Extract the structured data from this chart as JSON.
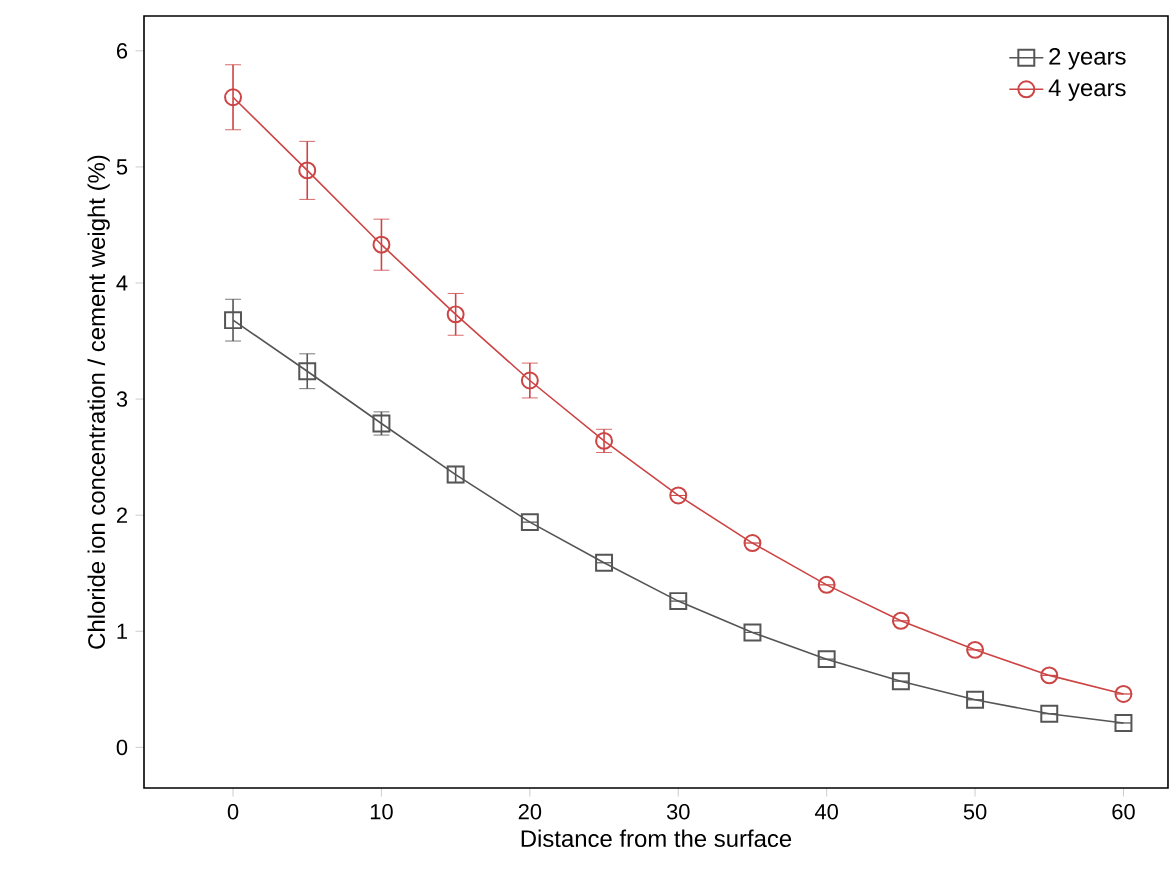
{
  "chart_data": {
    "type": "line",
    "xlabel": "Distance from the surface",
    "ylabel": "Chloride ion concentration / cement weight (%)",
    "x": [
      0,
      5,
      10,
      15,
      20,
      25,
      30,
      35,
      40,
      45,
      50,
      55,
      60
    ],
    "series": [
      {
        "name": "2 years",
        "color": "#555555",
        "marker": "square",
        "values": [
          3.68,
          3.24,
          2.79,
          2.35,
          1.94,
          1.59,
          1.26,
          0.99,
          0.76,
          0.57,
          0.41,
          0.29,
          0.21
        ],
        "errors": [
          0.18,
          0.15,
          0.1,
          0.07,
          null,
          null,
          null,
          null,
          null,
          null,
          null,
          null,
          null
        ]
      },
      {
        "name": "4 years",
        "color": "#cc4444",
        "marker": "circle",
        "values": [
          5.6,
          4.97,
          4.33,
          3.73,
          3.16,
          2.64,
          2.17,
          1.76,
          1.4,
          1.09,
          0.84,
          0.62,
          0.46
        ],
        "errors": [
          0.28,
          0.25,
          0.22,
          0.18,
          0.15,
          0.1,
          null,
          null,
          null,
          null,
          null,
          null,
          null
        ]
      }
    ],
    "xlim": [
      -6,
      63
    ],
    "ylim": [
      -0.35,
      6.3
    ],
    "xticks": [
      0,
      10,
      20,
      30,
      40,
      50,
      60
    ],
    "yticks": [
      0,
      1,
      2,
      3,
      4,
      5,
      6
    ],
    "grid": false,
    "legend": "top right",
    "line_style": "solid"
  }
}
